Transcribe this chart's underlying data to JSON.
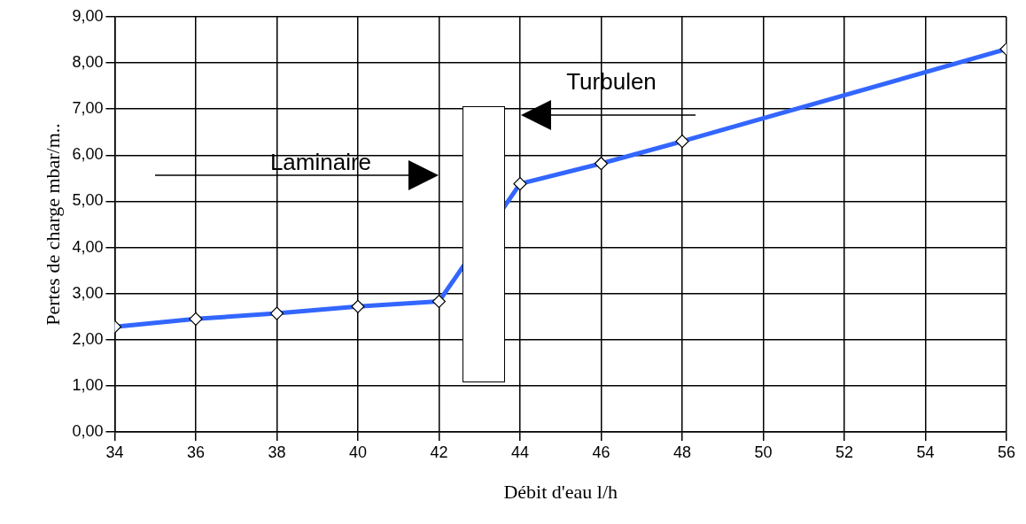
{
  "chart_data": {
    "type": "line",
    "xlabel": "Débit d'eau l/h",
    "ylabel": "Pertes de charge mbar/m..",
    "x": [
      34,
      36,
      38,
      40,
      42,
      44,
      46,
      48,
      56
    ],
    "series": [
      {
        "color": "#3366ff",
        "values": [
          2.28,
          2.45,
          2.57,
          2.72,
          2.83,
          5.38,
          5.82,
          6.3,
          8.3
        ]
      }
    ],
    "xlim": [
      34,
      56
    ],
    "xticks": [
      34,
      36,
      38,
      40,
      42,
      44,
      46,
      48,
      50,
      52,
      54,
      56
    ],
    "ylim": [
      0,
      9
    ],
    "yticks": [
      {
        "value": 0,
        "label": "0,00"
      },
      {
        "value": 1,
        "label": "1,00"
      },
      {
        "value": 2,
        "label": "2,00"
      },
      {
        "value": 3,
        "label": "3,00"
      },
      {
        "value": 4,
        "label": "4,00"
      },
      {
        "value": 5,
        "label": "5,00"
      },
      {
        "value": 6,
        "label": "6,00"
      },
      {
        "value": 7,
        "label": "7,00"
      },
      {
        "value": 8,
        "label": "8,00"
      },
      {
        "value": 9,
        "label": "9,00"
      }
    ],
    "grid": true,
    "legend": false,
    "marker": "diamond",
    "line_style": "solid",
    "annotations": [
      "Laminaire",
      "Turbulen"
    ]
  }
}
